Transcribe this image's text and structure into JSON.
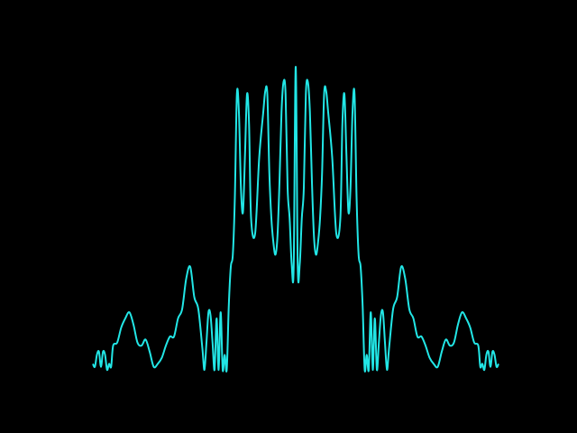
{
  "chart_data": {
    "type": "line",
    "title": "",
    "xlabel": "",
    "ylabel": "",
    "grid": false,
    "legend": "none",
    "colors": {
      "background": "#000000",
      "line": "#22e6e6"
    },
    "xlim": [
      -1.0,
      1.0
    ],
    "ylim": [
      0,
      1.0
    ],
    "series": [
      {
        "x": [
          -1.0,
          -0.99,
          -0.98,
          -0.97,
          -0.96,
          -0.95,
          -0.94,
          -0.93,
          -0.92,
          -0.91,
          -0.9,
          -0.88,
          -0.86,
          -0.84,
          -0.82,
          -0.8,
          -0.78,
          -0.76,
          -0.74,
          -0.72,
          -0.7,
          -0.68,
          -0.66,
          -0.64,
          -0.62,
          -0.6,
          -0.58,
          -0.56,
          -0.54,
          -0.52,
          -0.5,
          -0.48,
          -0.46,
          -0.45,
          -0.44,
          -0.43,
          -0.42,
          -0.41,
          -0.4,
          -0.39,
          -0.38,
          -0.37,
          -0.36,
          -0.35,
          -0.34,
          -0.33,
          -0.32,
          -0.31,
          -0.3,
          -0.29,
          -0.28,
          -0.27,
          -0.26,
          -0.25,
          -0.24,
          -0.23,
          -0.22,
          -0.2,
          -0.18,
          -0.16,
          -0.15,
          -0.14,
          -0.13,
          -0.12,
          -0.11,
          -0.1,
          -0.09,
          -0.08,
          -0.07,
          -0.06,
          -0.05,
          -0.04,
          -0.03,
          -0.02,
          -0.01,
          0.0,
          0.01,
          0.02,
          0.03,
          0.04,
          0.05,
          0.06,
          0.07,
          0.08,
          0.09,
          0.1,
          0.11,
          0.12,
          0.13,
          0.14,
          0.15,
          0.16,
          0.18,
          0.2,
          0.22,
          0.23,
          0.24,
          0.25,
          0.26,
          0.27,
          0.28,
          0.29,
          0.3,
          0.31,
          0.32,
          0.33,
          0.34,
          0.35,
          0.36,
          0.37,
          0.38,
          0.39,
          0.4,
          0.41,
          0.42,
          0.43,
          0.44,
          0.45,
          0.46,
          0.48,
          0.5,
          0.52,
          0.54,
          0.56,
          0.58,
          0.6,
          0.62,
          0.64,
          0.66,
          0.68,
          0.7,
          0.72,
          0.74,
          0.76,
          0.78,
          0.8,
          0.82,
          0.84,
          0.86,
          0.88,
          0.9,
          0.91,
          0.92,
          0.93,
          0.94,
          0.95,
          0.96,
          0.97,
          0.98,
          0.99,
          1.0
        ],
        "y": [
          0.02,
          0.01,
          0.05,
          0.06,
          0.01,
          0.06,
          0.05,
          0.0,
          0.02,
          0.01,
          0.08,
          0.09,
          0.14,
          0.17,
          0.19,
          0.15,
          0.09,
          0.08,
          0.1,
          0.06,
          0.01,
          0.02,
          0.04,
          0.08,
          0.11,
          0.11,
          0.17,
          0.2,
          0.3,
          0.34,
          0.24,
          0.2,
          0.07,
          0.0,
          0.09,
          0.19,
          0.18,
          0.09,
          0.0,
          0.17,
          0.0,
          0.19,
          0.0,
          0.05,
          0.0,
          0.21,
          0.34,
          0.38,
          0.57,
          0.91,
          0.85,
          0.6,
          0.52,
          0.71,
          0.91,
          0.81,
          0.5,
          0.45,
          0.7,
          0.85,
          0.92,
          0.91,
          0.65,
          0.5,
          0.42,
          0.38,
          0.44,
          0.62,
          0.85,
          0.95,
          0.91,
          0.6,
          0.5,
          0.35,
          0.34,
          1.0,
          0.34,
          0.35,
          0.5,
          0.6,
          0.91,
          0.95,
          0.85,
          0.62,
          0.44,
          0.38,
          0.42,
          0.5,
          0.65,
          0.91,
          0.92,
          0.85,
          0.7,
          0.45,
          0.5,
          0.81,
          0.91,
          0.71,
          0.52,
          0.6,
          0.85,
          0.91,
          0.57,
          0.38,
          0.34,
          0.21,
          0.0,
          0.05,
          0.0,
          0.19,
          0.0,
          0.17,
          0.0,
          0.09,
          0.18,
          0.19,
          0.09,
          0.0,
          0.07,
          0.2,
          0.24,
          0.34,
          0.3,
          0.2,
          0.17,
          0.11,
          0.11,
          0.08,
          0.04,
          0.02,
          0.01,
          0.06,
          0.1,
          0.08,
          0.09,
          0.15,
          0.19,
          0.17,
          0.14,
          0.09,
          0.08,
          0.01,
          0.02,
          0.0,
          0.05,
          0.06,
          0.01,
          0.06,
          0.05,
          0.01,
          0.02
        ]
      }
    ]
  }
}
